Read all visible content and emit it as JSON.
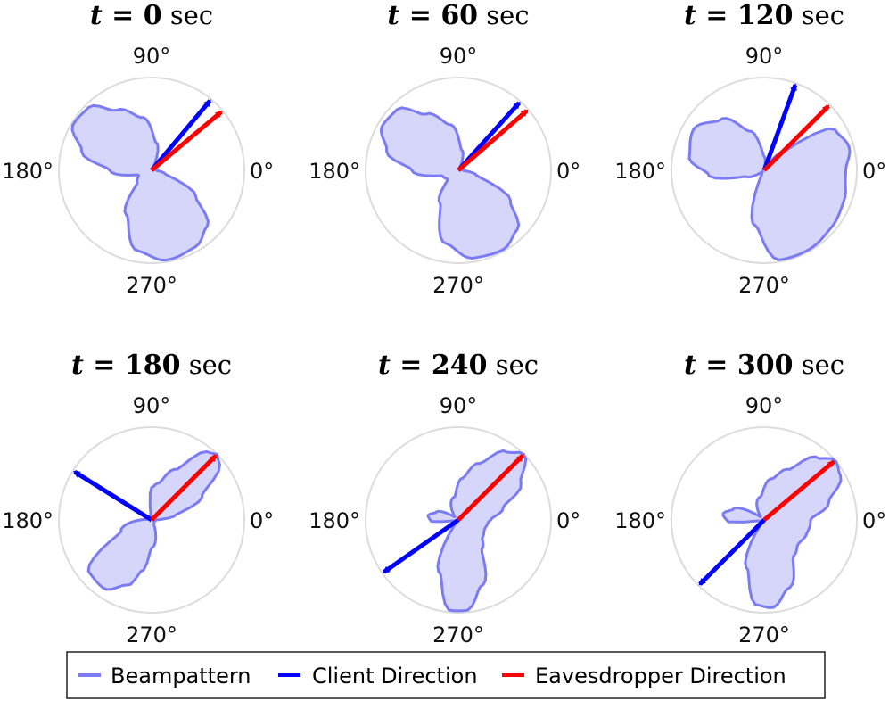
{
  "colors": {
    "beampattern_stroke": "#7b7bf4",
    "beampattern_fill": "#d6d6fb",
    "client": "#0000ff",
    "eavesdropper": "#ff0000",
    "circle": "#dcdcdc"
  },
  "angle_labels": [
    "90°",
    "180°",
    "0°",
    "270°"
  ],
  "legend": [
    {
      "label": "Beampattern",
      "color": "#7b7bf4"
    },
    {
      "label": "Client Direction",
      "color": "#0000ff"
    },
    {
      "label": "Eavesdropper Direction",
      "color": "#ff0000"
    }
  ],
  "chart_data": [
    {
      "type": "polar",
      "title": {
        "var": "t",
        "eq": "=",
        "value": "0",
        "unit": "sec"
      },
      "client_direction_deg": 50,
      "eavesdropper_direction_deg": 40,
      "beampattern": {
        "angles_deg": [
          0,
          20,
          40,
          60,
          80,
          100,
          120,
          135,
          150,
          165,
          180,
          200,
          220,
          240,
          260,
          280,
          300,
          315,
          330,
          345
        ],
        "radius": [
          0.05,
          0.04,
          0.03,
          0.06,
          0.3,
          0.58,
          0.75,
          0.96,
          0.98,
          0.78,
          0.45,
          0.15,
          0.2,
          0.55,
          0.88,
          0.98,
          0.95,
          0.85,
          0.55,
          0.15
        ]
      }
    },
    {
      "type": "polar",
      "title": {
        "var": "t",
        "eq": "=",
        "value": "60",
        "unit": "sec"
      },
      "client_direction_deg": 48,
      "eavesdropper_direction_deg": 41,
      "beampattern": {
        "angles_deg": [
          0,
          20,
          40,
          60,
          80,
          100,
          120,
          135,
          150,
          165,
          180,
          200,
          220,
          240,
          260,
          280,
          300,
          315,
          330,
          345
        ],
        "radius": [
          0.05,
          0.04,
          0.03,
          0.05,
          0.22,
          0.5,
          0.7,
          0.93,
          0.95,
          0.8,
          0.5,
          0.18,
          0.15,
          0.4,
          0.8,
          0.96,
          0.98,
          0.9,
          0.65,
          0.2
        ]
      }
    },
    {
      "type": "polar",
      "title": {
        "var": "t",
        "eq": "=",
        "value": "120",
        "unit": "sec"
      },
      "client_direction_deg": 70,
      "eavesdropper_direction_deg": 45,
      "beampattern": {
        "angles_deg": [
          0,
          15,
          30,
          45,
          60,
          75,
          90,
          110,
          130,
          150,
          170,
          185,
          200,
          220,
          240,
          260,
          280,
          300,
          320,
          340,
          355
        ],
        "radius": [
          0.88,
          0.95,
          0.88,
          0.28,
          0.04,
          0.03,
          0.15,
          0.45,
          0.72,
          0.88,
          0.82,
          0.6,
          0.2,
          0.02,
          0.05,
          0.6,
          0.98,
          0.98,
          0.95,
          0.92,
          0.88
        ]
      }
    },
    {
      "type": "polar",
      "title": {
        "var": "t",
        "eq": "=",
        "value": "180",
        "unit": "sec"
      },
      "client_direction_deg": 148,
      "eavesdropper_direction_deg": 45,
      "beampattern": {
        "angles_deg": [
          0,
          10,
          25,
          40,
          45,
          50,
          65,
          80,
          90,
          100,
          130,
          170,
          200,
          220,
          235,
          250,
          260,
          270,
          300,
          330,
          350
        ],
        "radius": [
          0.05,
          0.25,
          0.6,
          0.95,
          1.0,
          0.95,
          0.6,
          0.4,
          0.35,
          0.05,
          0.03,
          0.05,
          0.35,
          0.88,
          0.9,
          0.75,
          0.55,
          0.3,
          0.05,
          0.03,
          0.04
        ]
      }
    },
    {
      "type": "polar",
      "title": {
        "var": "t",
        "eq": "=",
        "value": "240",
        "unit": "sec"
      },
      "client_direction_deg": 215,
      "eavesdropper_direction_deg": 45,
      "beampattern": {
        "angles_deg": [
          0,
          15,
          30,
          45,
          55,
          70,
          85,
          100,
          140,
          160,
          172,
          182,
          190,
          210,
          230,
          250,
          265,
          275,
          290,
          310,
          325,
          340,
          355
        ],
        "radius": [
          0.35,
          0.5,
          0.78,
          1.0,
          0.9,
          0.65,
          0.45,
          0.25,
          0.05,
          0.25,
          0.33,
          0.3,
          0.05,
          0.03,
          0.03,
          0.6,
          0.98,
          0.98,
          0.75,
          0.4,
          0.32,
          0.3,
          0.32
        ]
      }
    },
    {
      "type": "polar",
      "title": {
        "var": "t",
        "eq": "=",
        "value": "300",
        "unit": "sec"
      },
      "client_direction_deg": 225,
      "eavesdropper_direction_deg": 40,
      "beampattern": {
        "angles_deg": [
          0,
          15,
          30,
          40,
          50,
          65,
          80,
          100,
          140,
          160,
          172,
          182,
          190,
          210,
          230,
          250,
          265,
          275,
          290,
          310,
          325,
          340,
          355
        ],
        "radius": [
          0.5,
          0.72,
          0.95,
          1.0,
          0.88,
          0.6,
          0.45,
          0.25,
          0.05,
          0.35,
          0.45,
          0.4,
          0.05,
          0.03,
          0.03,
          0.55,
          0.92,
          0.95,
          0.78,
          0.5,
          0.45,
          0.48,
          0.5
        ]
      }
    }
  ]
}
